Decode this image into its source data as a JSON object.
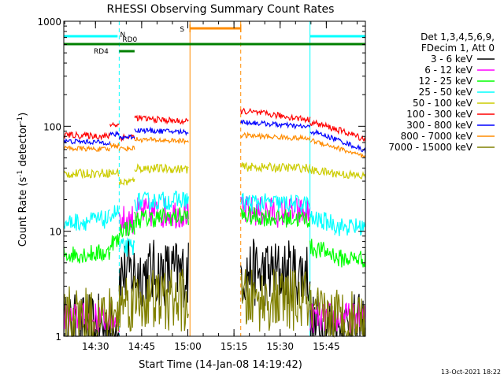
{
  "chart_data": {
    "type": "line",
    "title": "RHESSI Observing Summary Count Rates",
    "xlabel": "Start Time (14-Jan-08 14:19:42)",
    "ylabel": "Count Rate (s⁻¹ detector⁻¹)",
    "ylabel_parts": [
      "Count Rate (s",
      "-1",
      " detector",
      "-1",
      ")"
    ],
    "yscale": "log",
    "ylim": [
      1,
      1000
    ],
    "xlim_minutes": [
      0,
      98
    ],
    "x_ticks": [
      {
        "minute": 10.3,
        "label": "14:30"
      },
      {
        "minute": 25.3,
        "label": "14:45"
      },
      {
        "minute": 40.3,
        "label": "15:00"
      },
      {
        "minute": 55.3,
        "label": "15:15"
      },
      {
        "minute": 70.3,
        "label": "15:30"
      },
      {
        "minute": 85.3,
        "label": "15:45"
      }
    ],
    "y_ticks": [
      {
        "value": 1,
        "label": "1"
      },
      {
        "value": 10,
        "label": "10"
      },
      {
        "value": 100,
        "label": "100"
      },
      {
        "value": 1000,
        "label": "1000"
      }
    ],
    "legend_header": [
      "Det 1,3,4,5,6,9,",
      "FDecim 1, Att 0"
    ],
    "gaps_minutes": [
      [
        41,
        57.5
      ]
    ],
    "series": [
      {
        "name": "3 - 6 keV",
        "color": "#000000",
        "noise": 0.55,
        "segments": [
          {
            "x0": 0,
            "x1": 18,
            "v0": 1.2,
            "v1": 1.2
          },
          {
            "x0": 18,
            "x1": 40.5,
            "v0": 4.0,
            "v1": 4.0
          },
          {
            "x0": 57.5,
            "x1": 80,
            "v0": 4.0,
            "v1": 4.0
          },
          {
            "x0": 80,
            "x1": 98,
            "v0": 1.2,
            "v1": 1.2
          }
        ]
      },
      {
        "name": "6 - 12 keV",
        "color": "#ff00ff",
        "noise": 0.25,
        "segments": [
          {
            "x0": 0,
            "x1": 18,
            "v0": 1.5,
            "v1": 1.5
          },
          {
            "x0": 18,
            "x1": 23,
            "v0": 12.5,
            "v1": 13
          },
          {
            "x0": 23,
            "x1": 40.5,
            "v0": 15,
            "v1": 15
          },
          {
            "x0": 57.5,
            "x1": 80,
            "v0": 15.5,
            "v1": 15
          },
          {
            "x0": 80,
            "x1": 98,
            "v0": 1.5,
            "v1": 1.5
          }
        ]
      },
      {
        "name": "12 - 25 keV",
        "color": "#00ff00",
        "noise": 0.15,
        "segments": [
          {
            "x0": 0,
            "x1": 15,
            "v0": 6.0,
            "v1": 6.2
          },
          {
            "x0": 15,
            "x1": 18,
            "v0": 8.0,
            "v1": 8.0
          },
          {
            "x0": 18,
            "x1": 23,
            "v0": 10.5,
            "v1": 11
          },
          {
            "x0": 23,
            "x1": 40.5,
            "v0": 13,
            "v1": 14
          },
          {
            "x0": 57.5,
            "x1": 80,
            "v0": 14,
            "v1": 13
          },
          {
            "x0": 80,
            "x1": 88,
            "v0": 7.0,
            "v1": 6.0
          },
          {
            "x0": 88,
            "x1": 98,
            "v0": 5.5,
            "v1": 5.5
          }
        ]
      },
      {
        "name": "25 - 50 keV",
        "color": "#00ffff",
        "noise": 0.15,
        "segments": [
          {
            "x0": 0,
            "x1": 15,
            "v0": 12,
            "v1": 13
          },
          {
            "x0": 15,
            "x1": 18,
            "v0": 15,
            "v1": 15
          },
          {
            "x0": 18,
            "x1": 23,
            "v0": 7.0,
            "v1": 7.0
          },
          {
            "x0": 23,
            "x1": 40.5,
            "v0": 19,
            "v1": 20
          },
          {
            "x0": 57.5,
            "x1": 80,
            "v0": 19,
            "v1": 18
          },
          {
            "x0": 80,
            "x1": 88,
            "v0": 13,
            "v1": 12
          },
          {
            "x0": 88,
            "x1": 98,
            "v0": 11,
            "v1": 11
          }
        ]
      },
      {
        "name": "50 - 100 keV",
        "color": "#cccc00",
        "noise": 0.07,
        "segments": [
          {
            "x0": 0,
            "x1": 15,
            "v0": 35,
            "v1": 36
          },
          {
            "x0": 15,
            "x1": 18,
            "v0": 36,
            "v1": 36
          },
          {
            "x0": 18,
            "x1": 23,
            "v0": 29,
            "v1": 30
          },
          {
            "x0": 23,
            "x1": 40.5,
            "v0": 40,
            "v1": 39
          },
          {
            "x0": 57.5,
            "x1": 80,
            "v0": 41,
            "v1": 40
          },
          {
            "x0": 80,
            "x1": 98,
            "v0": 38,
            "v1": 33
          }
        ]
      },
      {
        "name": "100 - 300 keV",
        "color": "#ff0000",
        "noise": 0.05,
        "segments": [
          {
            "x0": 0,
            "x1": 15,
            "v0": 83,
            "v1": 80
          },
          {
            "x0": 15,
            "x1": 18,
            "v0": 105,
            "v1": 103
          },
          {
            "x0": 18,
            "x1": 23,
            "v0": 78,
            "v1": 80
          },
          {
            "x0": 23,
            "x1": 40.5,
            "v0": 120,
            "v1": 110
          },
          {
            "x0": 57.5,
            "x1": 80,
            "v0": 140,
            "v1": 115
          },
          {
            "x0": 80,
            "x1": 98,
            "v0": 110,
            "v1": 75
          }
        ]
      },
      {
        "name": "300 - 800 keV",
        "color": "#0000ff",
        "noise": 0.04,
        "segments": [
          {
            "x0": 0,
            "x1": 15,
            "v0": 72,
            "v1": 70
          },
          {
            "x0": 15,
            "x1": 18,
            "v0": 84,
            "v1": 83
          },
          {
            "x0": 18,
            "x1": 23,
            "v0": 78,
            "v1": 80
          },
          {
            "x0": 23,
            "x1": 40.5,
            "v0": 92,
            "v1": 88
          },
          {
            "x0": 57.5,
            "x1": 80,
            "v0": 110,
            "v1": 98
          },
          {
            "x0": 80,
            "x1": 98,
            "v0": 90,
            "v1": 58
          }
        ]
      },
      {
        "name": "800 - 7000 keV",
        "color": "#ff8c00",
        "noise": 0.04,
        "segments": [
          {
            "x0": 0,
            "x1": 15,
            "v0": 62,
            "v1": 60
          },
          {
            "x0": 15,
            "x1": 18,
            "v0": 66,
            "v1": 66
          },
          {
            "x0": 18,
            "x1": 23,
            "v0": 61,
            "v1": 62
          },
          {
            "x0": 23,
            "x1": 40.5,
            "v0": 75,
            "v1": 72
          },
          {
            "x0": 57.5,
            "x1": 80,
            "v0": 82,
            "v1": 76
          },
          {
            "x0": 80,
            "x1": 98,
            "v0": 74,
            "v1": 50
          }
        ]
      },
      {
        "name": "7000 - 15000 keV",
        "color": "#808000",
        "noise": 0.5,
        "segments": [
          {
            "x0": 0,
            "x1": 18,
            "v0": 1.5,
            "v1": 1.5
          },
          {
            "x0": 18,
            "x1": 40.5,
            "v0": 2.2,
            "v1": 2.2
          },
          {
            "x0": 57.5,
            "x1": 80,
            "v0": 2.2,
            "v1": 2.2
          },
          {
            "x0": 80,
            "x1": 98,
            "v0": 1.5,
            "v1": 1.5
          }
        ]
      }
    ],
    "vertical_markers": [
      {
        "name": "marker-saa-start",
        "minute": 41,
        "color": "#ff8c00",
        "style": "solid"
      },
      {
        "name": "marker-saa-end",
        "minute": 57.5,
        "color": "#ff8c00",
        "style": "dashed"
      },
      {
        "name": "marker-night-end",
        "minute": 18,
        "color": "#00ffff",
        "style": "dashed"
      },
      {
        "name": "marker-night-start",
        "minute": 80,
        "color": "#00ffff",
        "style": "solid"
      },
      {
        "name": "marker-night-end-2",
        "minute": 98,
        "color": "#00ffff",
        "style": "dashed"
      }
    ],
    "top_bars": [
      {
        "name": "night-bar-1",
        "label": "",
        "x0": 0,
        "x1": 17.5,
        "level": 1,
        "color": "#00ffff"
      },
      {
        "name": "night-bar-2",
        "label": "",
        "x0": 80,
        "x1": 98,
        "level": 1,
        "color": "#00ffff"
      },
      {
        "name": "night-label",
        "label": "N",
        "x0": 18.3,
        "x1": 18.3,
        "level": 1.2,
        "color": "#00ffff",
        "text_only": true
      },
      {
        "name": "saa-bar",
        "label": "S",
        "x0": 41,
        "x1": 57.5,
        "level": 0,
        "color": "#ff8c00",
        "tick_left": true
      },
      {
        "name": "rd0-bar",
        "label": "RD0",
        "x0": 18,
        "x1": 98,
        "level": 2,
        "color": "#008000",
        "label_above": true
      },
      {
        "name": "rd4-bar",
        "label": "RD4",
        "x0": 0,
        "x1": 18,
        "level": 2,
        "color": "#008000",
        "label_below": true
      },
      {
        "name": "rd-short-bar",
        "label": "",
        "x0": 18,
        "x1": 23,
        "level": 2.9,
        "color": "#008000"
      }
    ],
    "footer_date": "13-Oct-2021 18:22"
  }
}
